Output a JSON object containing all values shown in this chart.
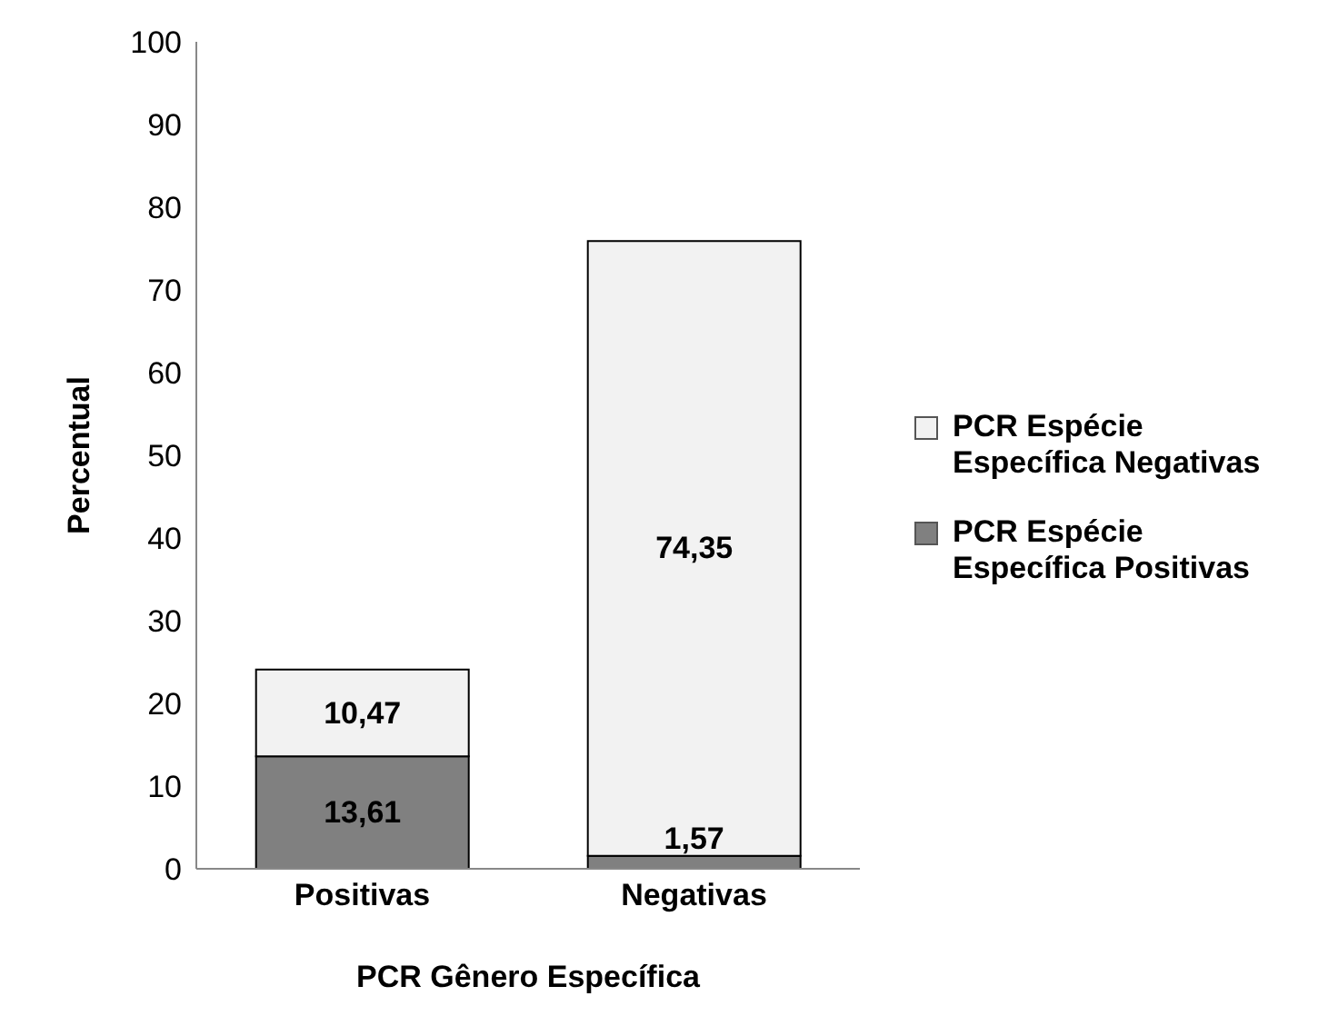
{
  "chart_data": {
    "type": "bar",
    "stacked": true,
    "categories": [
      "Positivas",
      "Negativas"
    ],
    "series": [
      {
        "name": "PCR Espécie Específica Positivas",
        "color": "#808080",
        "values": [
          13.61,
          1.57
        ],
        "value_labels": [
          "13,61",
          "1,57"
        ]
      },
      {
        "name": "PCR Espécie Específica Negativas",
        "color": "#f2f2f2",
        "values": [
          10.47,
          74.35
        ],
        "value_labels": [
          "10,47",
          "74,35"
        ]
      }
    ],
    "ylim": [
      0,
      100
    ],
    "yticks": [
      0,
      10,
      20,
      30,
      40,
      50,
      60,
      70,
      80,
      90,
      100
    ],
    "ylabel": "Percentual",
    "xlabel": "PCR Gênero Específica",
    "legend": "right",
    "grid": false
  }
}
